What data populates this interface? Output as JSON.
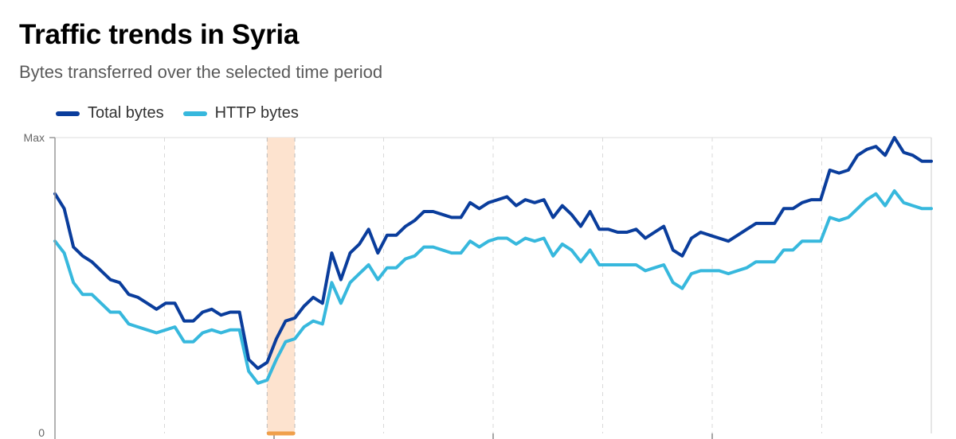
{
  "title": "Traffic trends in Syria",
  "subtitle": "Bytes transferred over the selected time period",
  "chart_data": {
    "type": "line",
    "ylabel": "",
    "xlabel": "",
    "y_tick_labels": [
      "Max",
      "0"
    ],
    "ylim": [
      0,
      1
    ],
    "x_gridlines": "dashed vertical",
    "legend_placement": "top-left",
    "highlight": {
      "from_index": 23,
      "to_index": 26,
      "color": "#fde3cf",
      "marker_color": "#f0a04b"
    },
    "series": [
      {
        "name": "Total bytes",
        "color": "#0a3d9c",
        "values": [
          0.81,
          0.76,
          0.63,
          0.6,
          0.58,
          0.55,
          0.52,
          0.51,
          0.47,
          0.46,
          0.44,
          0.42,
          0.44,
          0.44,
          0.38,
          0.38,
          0.41,
          0.42,
          0.4,
          0.41,
          0.41,
          0.25,
          0.22,
          0.24,
          0.32,
          0.38,
          0.39,
          0.43,
          0.46,
          0.44,
          0.61,
          0.52,
          0.61,
          0.64,
          0.69,
          0.61,
          0.67,
          0.67,
          0.7,
          0.72,
          0.75,
          0.75,
          0.74,
          0.73,
          0.73,
          0.78,
          0.76,
          0.78,
          0.79,
          0.8,
          0.77,
          0.79,
          0.78,
          0.79,
          0.73,
          0.77,
          0.74,
          0.7,
          0.75,
          0.69,
          0.69,
          0.68,
          0.68,
          0.69,
          0.66,
          0.68,
          0.7,
          0.62,
          0.6,
          0.66,
          0.68,
          0.67,
          0.66,
          0.65,
          0.67,
          0.69,
          0.71,
          0.71,
          0.71,
          0.76,
          0.76,
          0.78,
          0.79,
          0.79,
          0.89,
          0.88,
          0.89,
          0.94,
          0.96,
          0.97,
          0.94,
          1.0,
          0.95,
          0.94,
          0.92,
          0.92
        ]
      },
      {
        "name": "HTTP bytes",
        "color": "#37b8dd",
        "values": [
          0.65,
          0.61,
          0.51,
          0.47,
          0.47,
          0.44,
          0.41,
          0.41,
          0.37,
          0.36,
          0.35,
          0.34,
          0.35,
          0.36,
          0.31,
          0.31,
          0.34,
          0.35,
          0.34,
          0.35,
          0.35,
          0.21,
          0.17,
          0.18,
          0.25,
          0.31,
          0.32,
          0.36,
          0.38,
          0.37,
          0.51,
          0.44,
          0.51,
          0.54,
          0.57,
          0.52,
          0.56,
          0.56,
          0.59,
          0.6,
          0.63,
          0.63,
          0.62,
          0.61,
          0.61,
          0.65,
          0.63,
          0.65,
          0.66,
          0.66,
          0.64,
          0.66,
          0.65,
          0.66,
          0.6,
          0.64,
          0.62,
          0.58,
          0.62,
          0.57,
          0.57,
          0.57,
          0.57,
          0.57,
          0.55,
          0.56,
          0.57,
          0.51,
          0.49,
          0.54,
          0.55,
          0.55,
          0.55,
          0.54,
          0.55,
          0.56,
          0.58,
          0.58,
          0.58,
          0.62,
          0.62,
          0.65,
          0.65,
          0.65,
          0.73,
          0.72,
          0.73,
          0.76,
          0.79,
          0.81,
          0.77,
          0.82,
          0.78,
          0.77,
          0.76,
          0.76
        ]
      }
    ]
  }
}
